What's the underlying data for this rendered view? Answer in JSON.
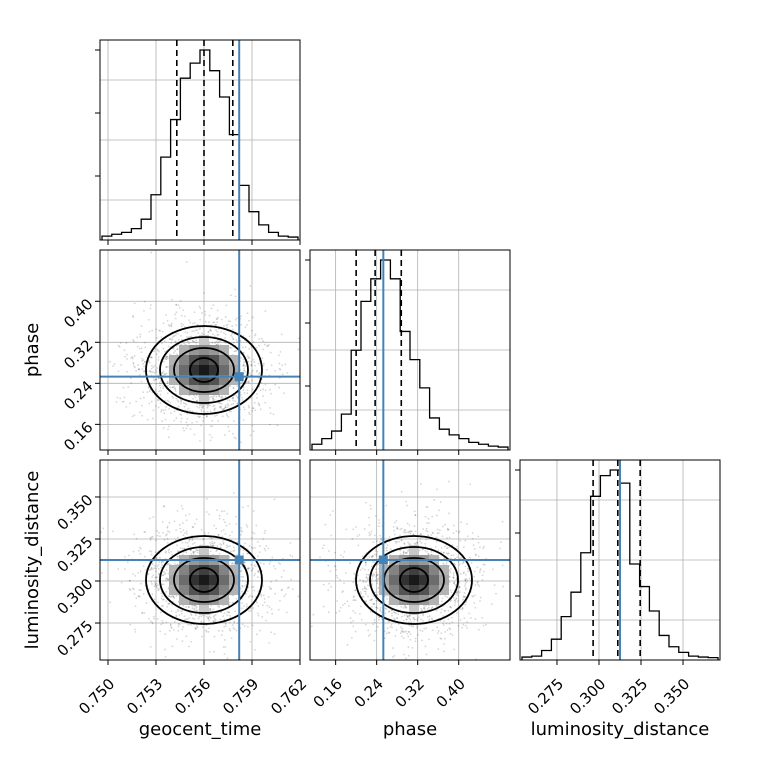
{
  "chart_data": {
    "type": "corner",
    "parameters": [
      "geocent_time",
      "phase",
      "luminosity_distance"
    ],
    "axis_labels": {
      "x": [
        "geocent_time",
        "phase",
        "luminosity_distance"
      ],
      "y_row2": "phase",
      "y_row3": "luminosity_distance"
    },
    "ranges": {
      "geocent_time": [
        0.7495,
        0.762
      ],
      "phase": [
        0.11,
        0.5
      ],
      "luminosity_distance": [
        0.253,
        0.372
      ]
    },
    "tick_labels": {
      "geocent_time": [
        "0.750",
        "0.753",
        "0.756",
        "0.759",
        "0.762"
      ],
      "phase": [
        "0.16",
        "0.24",
        "0.32",
        "0.40"
      ],
      "luminosity_distance": [
        "0.275",
        "0.300",
        "0.325",
        "0.350"
      ]
    },
    "ticks": {
      "geocent_time": [
        0.75,
        0.753,
        0.756,
        0.759,
        0.762
      ],
      "phase": [
        0.16,
        0.24,
        0.32,
        0.4
      ],
      "luminosity_distance": [
        0.275,
        0.3,
        0.325,
        0.35
      ]
    },
    "truths": {
      "geocent_time": 0.7582,
      "phase": 0.253,
      "luminosity_distance": 0.3125
    },
    "quantiles": {
      "geocent_time": [
        0.7543,
        0.756,
        0.7578
      ],
      "phase": [
        0.2,
        0.237,
        0.288
      ],
      "luminosity_distance": [
        0.2965,
        0.3112,
        0.3245
      ]
    },
    "marginals": {
      "geocent_time": {
        "counts": [
          0.01,
          0.02,
          0.03,
          0.05,
          0.1,
          0.23,
          0.43,
          0.63,
          0.85,
          0.93,
          1.0,
          0.89,
          0.75,
          0.55,
          0.28,
          0.14,
          0.07,
          0.03,
          0.01,
          0.005
        ]
      },
      "phase": {
        "counts": [
          0.02,
          0.05,
          0.09,
          0.18,
          0.52,
          0.78,
          0.9,
          1.0,
          0.9,
          0.62,
          0.47,
          0.32,
          0.16,
          0.1,
          0.07,
          0.05,
          0.03,
          0.02,
          0.01,
          0.005
        ]
      },
      "luminosity_distance": {
        "counts": [
          0.005,
          0.01,
          0.04,
          0.1,
          0.22,
          0.35,
          0.56,
          0.86,
          0.97,
          1.0,
          0.93,
          0.5,
          0.38,
          0.25,
          0.12,
          0.06,
          0.03,
          0.01,
          0.005,
          0.002
        ]
      }
    },
    "colors": {
      "truth": "#4682b4",
      "hist": "#000000",
      "quantile": "#000000",
      "grid": "#b0b0b0"
    },
    "grid": true
  }
}
